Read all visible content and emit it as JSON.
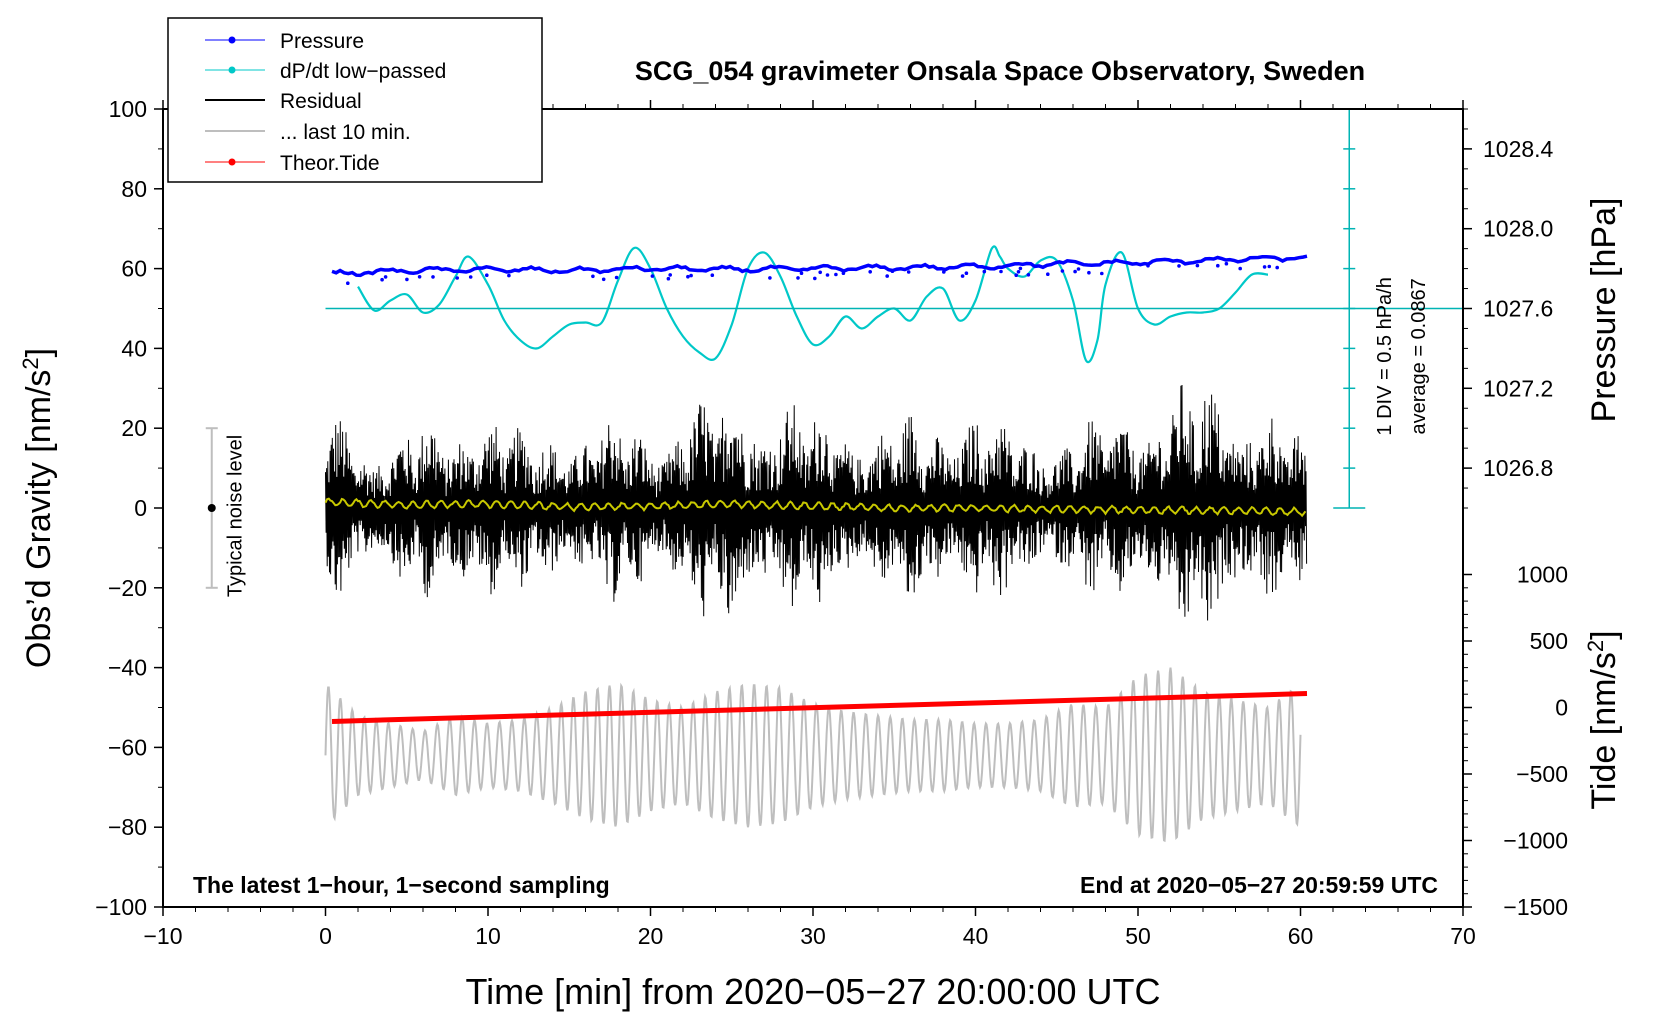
{
  "chart_data": {
    "type": "line",
    "title": "SCG_054 gravimeter Onsala Space Observatory, Sweden",
    "xlabel": "Time [min] from 2020−05−27 20:00:00 UTC",
    "ylabel_left_prefix": "Obs’d Gravity [nm/s",
    "ylabel_left_sup": "2",
    "ylabel_left_suffix": "]",
    "ylabel_right_pressure": "Pressure [hPa]",
    "ylabel_right_tide_prefix": "Tide [nm/s",
    "ylabel_right_tide_sup": "2",
    "ylabel_right_tide_suffix": "]",
    "xlim": [
      -10,
      70
    ],
    "ylim_left": [
      -100,
      100
    ],
    "x_ticks": [
      -10,
      0,
      10,
      20,
      30,
      40,
      50,
      60,
      70
    ],
    "x_tick_labels": [
      "−10",
      "0",
      "10",
      "20",
      "30",
      "40",
      "50",
      "60",
      "70"
    ],
    "y_left_ticks": [
      100,
      80,
      60,
      40,
      20,
      0,
      -20,
      -40,
      -60,
      -80,
      -100
    ],
    "y_left_tick_labels": [
      "100",
      "80",
      "60",
      "40",
      "20",
      "0",
      "−20",
      "−40",
      "−60",
      "−80",
      "−100"
    ],
    "pressure_axis": {
      "ticks": [
        1028.4,
        1028.0,
        1027.6,
        1027.2,
        1026.8
      ],
      "tick_labels": [
        "1028.4",
        "1028.0",
        "1027.6",
        "1027.2",
        "1026.8"
      ],
      "ref_value": 1027.6,
      "ref_left_y": 50,
      "hpa_per_left_unit": 0.02
    },
    "tide_axis": {
      "ticks": [
        1000,
        500,
        0,
        -500,
        -1000,
        -1500
      ],
      "tick_labels": [
        "1000",
        "500",
        "0",
        "−500",
        "−1000",
        "−1500"
      ],
      "ref_value": 0,
      "ref_left_y": -50,
      "nms2_per_left_unit": 30
    },
    "legend": {
      "placement": "top-left",
      "entries": [
        {
          "label": "Pressure",
          "color": "#0000ff",
          "style": "line-dot"
        },
        {
          "label": "dP/dt low−passed",
          "color": "#00c8c8",
          "style": "line-dot"
        },
        {
          "label": "Residual",
          "color": "#000000",
          "style": "line"
        },
        {
          "label": "... last 10 min.",
          "color": "#bebebe",
          "style": "line"
        },
        {
          "label": "Theor.Tide",
          "color": "#ff0000",
          "style": "line-dot"
        }
      ]
    },
    "annotations": {
      "bottom_left": "The latest 1−hour, 1−second sampling",
      "bottom_right": "End at 2020−05−27 20:59:59 UTC",
      "noise_label": "Typical noise level",
      "noise_bar": {
        "x": -7,
        "center": 0,
        "low": -20,
        "high": 20
      },
      "div_text": "1 DIV = 0.5 hPa/h",
      "avg_text": "average = 0.0867",
      "dpdt_scale": {
        "x": 63,
        "ymin": 0,
        "ymax": 100,
        "ticks": [
          0,
          10,
          20,
          30,
          40,
          50,
          60,
          70,
          80,
          90,
          100
        ],
        "baseline": 50
      }
    },
    "series": [
      {
        "name": "Pressure",
        "color": "#0000ff",
        "axis": "left",
        "x": [
          0.4,
          5,
          10,
          15,
          20,
          25,
          30,
          35,
          40,
          45,
          50,
          55,
          60.4
        ],
        "y": [
          58.7,
          59.5,
          59.8,
          59.5,
          60,
          59.8,
          60,
          60.2,
          60.5,
          61.2,
          61.5,
          62.2,
          62.8
        ]
      },
      {
        "name": "dP/dt low−passed",
        "color": "#00c8c8",
        "axis": "left",
        "x": [
          2,
          3,
          4,
          5,
          6,
          7,
          8,
          8.8,
          10,
          11,
          12,
          13,
          14,
          15,
          16,
          17,
          18,
          19,
          20,
          21,
          22,
          23,
          24,
          25,
          26,
          27,
          28,
          29,
          30,
          31,
          32,
          33,
          34,
          35,
          36,
          37,
          38,
          39,
          40,
          41,
          41.5,
          42,
          43,
          44,
          45,
          46,
          46.8,
          47.5,
          48,
          49,
          50,
          51,
          52,
          53,
          54,
          55,
          56,
          57,
          58
        ],
        "y": [
          55.5,
          49.5,
          52,
          53.5,
          49,
          51,
          58,
          63,
          56,
          47,
          42,
          40,
          43,
          46,
          46.5,
          46.5,
          57,
          65.2,
          60,
          50,
          43,
          39,
          37.5,
          46,
          60,
          64,
          58,
          48,
          41,
          43,
          48,
          45,
          48,
          50,
          47,
          53,
          55,
          47,
          52,
          65,
          63,
          60,
          58,
          62,
          62,
          52,
          37,
          42,
          56,
          64,
          50,
          46,
          48,
          49,
          49,
          50,
          54,
          58.5,
          58.5
        ]
      },
      {
        "name": "Residual envelope",
        "color": "#000000",
        "axis": "left",
        "x": [
          0,
          2,
          4,
          6,
          8,
          8.5,
          10,
          12,
          14,
          16,
          18,
          20,
          22,
          24,
          25.5,
          28,
          30,
          32,
          34,
          36,
          38,
          40,
          42,
          44,
          46,
          48,
          50,
          52,
          54,
          56,
          58,
          60.4
        ],
        "amplitude": [
          27,
          22,
          20,
          24,
          22,
          32,
          28,
          20,
          24,
          22,
          25,
          22,
          27,
          30,
          36,
          30,
          26,
          28,
          22,
          25,
          27,
          28,
          22,
          22,
          21,
          24,
          30,
          32,
          35,
          33,
          27,
          18
        ]
      },
      {
        "name": "Residual trend",
        "color": "#c8c800",
        "axis": "left",
        "x": [
          0,
          5,
          10,
          15,
          20,
          25,
          30,
          35,
          40,
          45,
          50,
          55,
          60.4
        ],
        "y": [
          1.5,
          0.8,
          1,
          0.3,
          0.5,
          1,
          0.5,
          0,
          0,
          -0.3,
          -0.5,
          -0.6,
          -1
        ]
      },
      {
        "name": "... last 10 min.",
        "color": "#bebebe",
        "axis": "left",
        "center": -62,
        "period_min": 0.75,
        "x": [
          0,
          2,
          4,
          6,
          8,
          10,
          12,
          14,
          16,
          18,
          20,
          22,
          24,
          26,
          28,
          30,
          32,
          34,
          36,
          38,
          40,
          42,
          44,
          46,
          48,
          50,
          52,
          54,
          56,
          58,
          60
        ],
        "amplitude": [
          18,
          10,
          8,
          6,
          10,
          8,
          9,
          12,
          16,
          18,
          14,
          12,
          16,
          18,
          17,
          13,
          11,
          10,
          9,
          9,
          8,
          8,
          9,
          13,
          12,
          20,
          22,
          16,
          14,
          12,
          18
        ]
      },
      {
        "name": "Theor.Tide",
        "color": "#ff0000",
        "axis": "left",
        "x": [
          0.4,
          60.4
        ],
        "y": [
          -53.5,
          -46.5
        ]
      }
    ]
  }
}
